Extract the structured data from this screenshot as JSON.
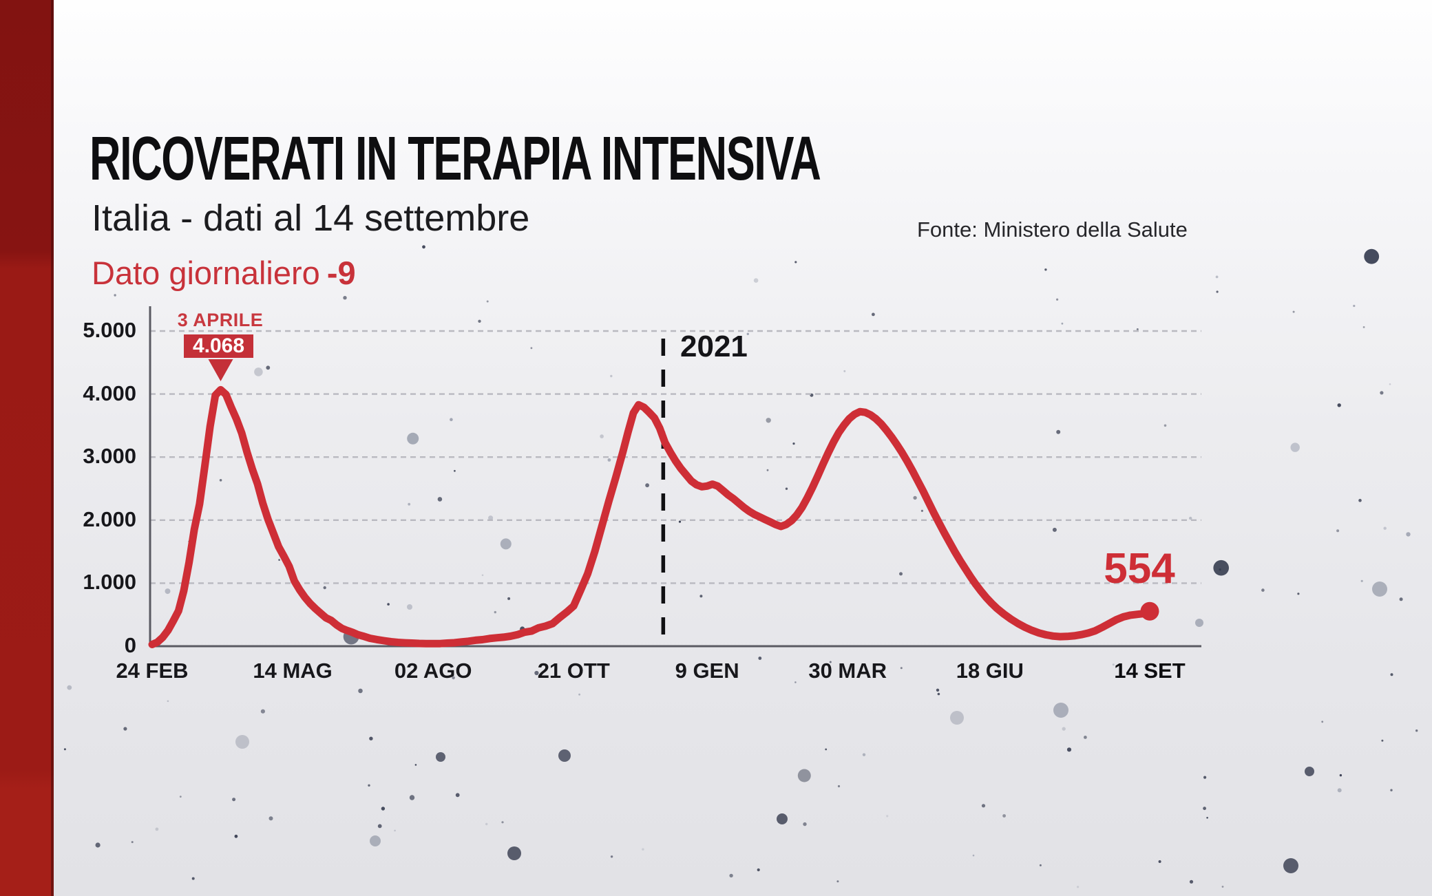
{
  "page": {
    "title": "RICOVERATI IN TERAPIA INTENSIVA",
    "subtitle": "Italia - dati al 14 settembre",
    "daily_label": "Dato giornaliero",
    "daily_delta": "-9",
    "source": "Fonte: Ministero della Salute"
  },
  "annotations": {
    "peak_date": "3 APRILE",
    "peak_value": "4.068",
    "year_marker": "2021",
    "latest_value": "554"
  },
  "colors": {
    "accent_red": "#c8323a",
    "line_red": "#ce2e36",
    "box_red": "#c43038",
    "axis_gray": "#5a5a62",
    "grid_gray": "#b9b9c0",
    "sidebar_red_top": "#871412",
    "sidebar_red_bottom": "#a51f18",
    "text_dark": "#141418"
  },
  "chart_data": {
    "type": "line",
    "title": "Ricoverati in terapia intensiva - Italia",
    "xlabel": "",
    "ylabel": "",
    "x_unit": "giorni dal 24 FEB 2020",
    "ylim": [
      0,
      5000
    ],
    "grid": "horizontal-dashed",
    "legend_position": "none",
    "y_ticks": [
      {
        "label": "5.000",
        "value": 5000
      },
      {
        "label": "4.000",
        "value": 4000
      },
      {
        "label": "3.000",
        "value": 3000
      },
      {
        "label": "2.000",
        "value": 2000
      },
      {
        "label": "1.000",
        "value": 1000
      },
      {
        "label": "0",
        "value": 0
      }
    ],
    "x_ticks": [
      {
        "label": "24 FEB",
        "day": 0
      },
      {
        "label": "14 MAG",
        "day": 80
      },
      {
        "label": "02 AGO",
        "day": 160
      },
      {
        "label": "21 OTT",
        "day": 240
      },
      {
        "label": "9 GEN",
        "day": 316
      },
      {
        "label": "30 MAR",
        "day": 396
      },
      {
        "label": "18 GIU",
        "day": 477
      },
      {
        "label": "14 SET",
        "day": 568
      }
    ],
    "year_divider_day": 291,
    "peak_day": 39,
    "peak_value": 4068,
    "latest_day": 568,
    "latest_value": 554,
    "series": [
      {
        "name": "Terapia intensiva (Italia)",
        "points": [
          [
            0,
            27
          ],
          [
            3,
            64
          ],
          [
            6,
            140
          ],
          [
            9,
            250
          ],
          [
            12,
            400
          ],
          [
            15,
            560
          ],
          [
            18,
            877
          ],
          [
            21,
            1328
          ],
          [
            24,
            1851
          ],
          [
            27,
            2257
          ],
          [
            30,
            2857
          ],
          [
            33,
            3489
          ],
          [
            36,
            3981
          ],
          [
            39,
            4068
          ],
          [
            42,
            3994
          ],
          [
            45,
            3792
          ],
          [
            48,
            3605
          ],
          [
            51,
            3381
          ],
          [
            54,
            3079
          ],
          [
            57,
            2812
          ],
          [
            60,
            2573
          ],
          [
            63,
            2267
          ],
          [
            66,
            2009
          ],
          [
            69,
            1795
          ],
          [
            72,
            1578
          ],
          [
            75,
            1427
          ],
          [
            78,
            1266
          ],
          [
            81,
            1034
          ],
          [
            84,
            893
          ],
          [
            87,
            775
          ],
          [
            90,
            676
          ],
          [
            93,
            595
          ],
          [
            96,
            521
          ],
          [
            99,
            450
          ],
          [
            102,
            408
          ],
          [
            105,
            338
          ],
          [
            108,
            283
          ],
          [
            111,
            249
          ],
          [
            114,
            220
          ],
          [
            117,
            183
          ],
          [
            120,
            161
          ],
          [
            124,
            126
          ],
          [
            128,
            105
          ],
          [
            132,
            87
          ],
          [
            136,
            71
          ],
          [
            140,
            60
          ],
          [
            144,
            53
          ],
          [
            148,
            49
          ],
          [
            152,
            44
          ],
          [
            156,
            41
          ],
          [
            160,
            41
          ],
          [
            164,
            42
          ],
          [
            168,
            49
          ],
          [
            172,
            55
          ],
          [
            176,
            68
          ],
          [
            180,
            79
          ],
          [
            184,
            94
          ],
          [
            188,
            104
          ],
          [
            192,
            121
          ],
          [
            196,
            133
          ],
          [
            200,
            143
          ],
          [
            204,
            158
          ],
          [
            208,
            182
          ],
          [
            212,
            222
          ],
          [
            216,
            239
          ],
          [
            220,
            291
          ],
          [
            224,
            319
          ],
          [
            228,
            358
          ],
          [
            232,
            452
          ],
          [
            236,
            539
          ],
          [
            240,
            638
          ],
          [
            244,
            890
          ],
          [
            248,
            1150
          ],
          [
            252,
            1500
          ],
          [
            256,
            1900
          ],
          [
            260,
            2300
          ],
          [
            264,
            2680
          ],
          [
            268,
            3080
          ],
          [
            271,
            3400
          ],
          [
            274,
            3700
          ],
          [
            277,
            3830
          ],
          [
            280,
            3790
          ],
          [
            283,
            3710
          ],
          [
            286,
            3620
          ],
          [
            289,
            3460
          ],
          [
            292,
            3230
          ],
          [
            295,
            3080
          ],
          [
            298,
            2940
          ],
          [
            301,
            2820
          ],
          [
            304,
            2720
          ],
          [
            307,
            2620
          ],
          [
            310,
            2560
          ],
          [
            313,
            2530
          ],
          [
            316,
            2540
          ],
          [
            319,
            2570
          ],
          [
            322,
            2540
          ],
          [
            325,
            2470
          ],
          [
            328,
            2400
          ],
          [
            331,
            2340
          ],
          [
            334,
            2270
          ],
          [
            337,
            2200
          ],
          [
            340,
            2140
          ],
          [
            343,
            2090
          ],
          [
            346,
            2050
          ],
          [
            349,
            2010
          ],
          [
            352,
            1970
          ],
          [
            355,
            1930
          ],
          [
            358,
            1900
          ],
          [
            361,
            1930
          ],
          [
            364,
            1990
          ],
          [
            367,
            2080
          ],
          [
            370,
            2200
          ],
          [
            373,
            2350
          ],
          [
            376,
            2520
          ],
          [
            379,
            2700
          ],
          [
            382,
            2890
          ],
          [
            385,
            3070
          ],
          [
            388,
            3240
          ],
          [
            391,
            3390
          ],
          [
            394,
            3510
          ],
          [
            397,
            3610
          ],
          [
            400,
            3680
          ],
          [
            403,
            3720
          ],
          [
            406,
            3710
          ],
          [
            409,
            3670
          ],
          [
            412,
            3610
          ],
          [
            415,
            3530
          ],
          [
            418,
            3430
          ],
          [
            421,
            3320
          ],
          [
            424,
            3200
          ],
          [
            427,
            3070
          ],
          [
            430,
            2930
          ],
          [
            433,
            2780
          ],
          [
            436,
            2620
          ],
          [
            439,
            2460
          ],
          [
            442,
            2290
          ],
          [
            445,
            2120
          ],
          [
            448,
            1960
          ],
          [
            451,
            1800
          ],
          [
            454,
            1650
          ],
          [
            457,
            1500
          ],
          [
            460,
            1360
          ],
          [
            463,
            1230
          ],
          [
            466,
            1100
          ],
          [
            469,
            980
          ],
          [
            472,
            870
          ],
          [
            475,
            770
          ],
          [
            478,
            680
          ],
          [
            481,
            600
          ],
          [
            485,
            510
          ],
          [
            489,
            430
          ],
          [
            493,
            360
          ],
          [
            497,
            300
          ],
          [
            501,
            250
          ],
          [
            505,
            210
          ],
          [
            509,
            180
          ],
          [
            513,
            160
          ],
          [
            517,
            152
          ],
          [
            521,
            155
          ],
          [
            525,
            165
          ],
          [
            529,
            183
          ],
          [
            533,
            208
          ],
          [
            537,
            245
          ],
          [
            541,
            300
          ],
          [
            545,
            360
          ],
          [
            549,
            420
          ],
          [
            553,
            465
          ],
          [
            557,
            492
          ],
          [
            561,
            505
          ],
          [
            564,
            515
          ],
          [
            566,
            528
          ],
          [
            568,
            554
          ]
        ]
      }
    ]
  }
}
